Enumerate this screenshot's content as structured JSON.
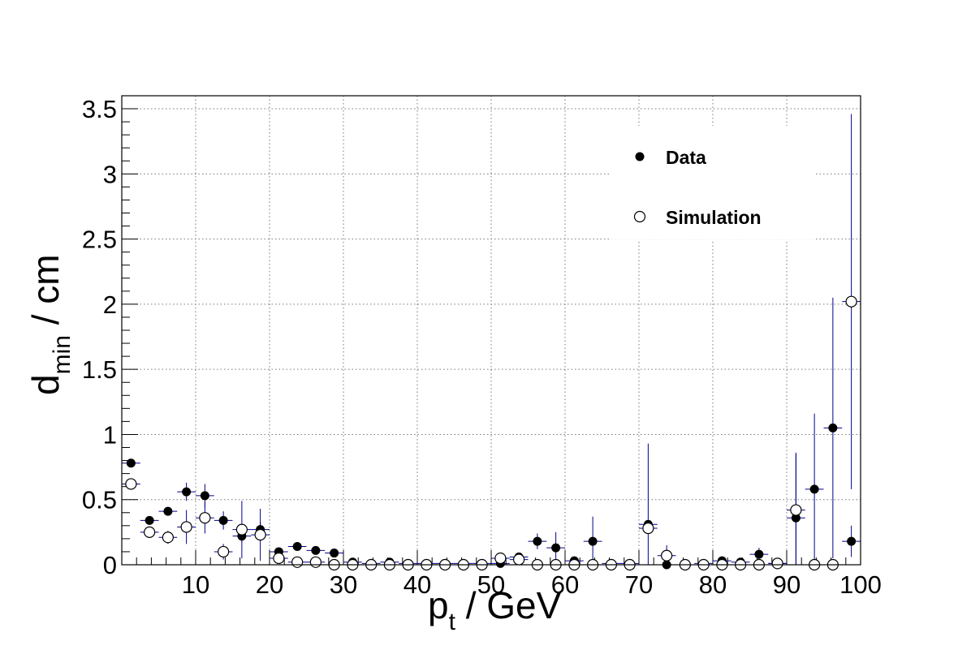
{
  "chart_data": {
    "type": "scatter",
    "xlabel": {
      "main": "p",
      "sub": "t",
      "rest": " / GeV"
    },
    "ylabel": {
      "main": "d",
      "sub": "min",
      "rest": " / cm"
    },
    "xlim": [
      0,
      100
    ],
    "ylim": [
      0,
      3.6
    ],
    "grid": true,
    "x_ticks": [
      {
        "value": 10,
        "label": "10"
      },
      {
        "value": 20,
        "label": "20"
      },
      {
        "value": 30,
        "label": "30"
      },
      {
        "value": 40,
        "label": "40"
      },
      {
        "value": 50,
        "label": "50"
      },
      {
        "value": 60,
        "label": "60"
      },
      {
        "value": 70,
        "label": "70"
      },
      {
        "value": 80,
        "label": "80"
      },
      {
        "value": 90,
        "label": "90"
      },
      {
        "value": 100,
        "label": "100"
      }
    ],
    "y_ticks": [
      {
        "value": 0,
        "label": "0"
      },
      {
        "value": 0.5,
        "label": "0.5"
      },
      {
        "value": 1,
        "label": "1"
      },
      {
        "value": 1.5,
        "label": "1.5"
      },
      {
        "value": 2,
        "label": "2"
      },
      {
        "value": 2.5,
        "label": "2.5"
      },
      {
        "value": 3,
        "label": "3"
      },
      {
        "value": 3.5,
        "label": "3.5"
      }
    ],
    "x_bin_half_width": 1.25,
    "legend_placement": "top-right",
    "series": [
      {
        "name": "Data",
        "marker": "filled-circle",
        "color": "#000000",
        "error_color": "#00008b",
        "points": [
          [
            1.25,
            0.78,
            0.0
          ],
          [
            3.75,
            0.34,
            0.0
          ],
          [
            6.25,
            0.41,
            0.0
          ],
          [
            8.75,
            0.56,
            0.07
          ],
          [
            11.25,
            0.53,
            0.09
          ],
          [
            13.75,
            0.34,
            0.07
          ],
          [
            16.25,
            0.22,
            0.05
          ],
          [
            18.75,
            0.27,
            0.06
          ],
          [
            21.25,
            0.1,
            0.0
          ],
          [
            23.75,
            0.14,
            0.0
          ],
          [
            26.25,
            0.11,
            0.0
          ],
          [
            28.75,
            0.09,
            0.0
          ],
          [
            31.25,
            0.02,
            0.0
          ],
          [
            33.75,
            0.01,
            0.0
          ],
          [
            36.25,
            0.02,
            0.0
          ],
          [
            38.75,
            0.01,
            0.0
          ],
          [
            41.25,
            0.01,
            0.0
          ],
          [
            43.75,
            0.01,
            0.0
          ],
          [
            46.25,
            0.01,
            0.0
          ],
          [
            48.75,
            0.01,
            0.0
          ],
          [
            51.25,
            0.01,
            0.0
          ],
          [
            53.75,
            0.06,
            0.0
          ],
          [
            56.25,
            0.18,
            0.06
          ],
          [
            58.75,
            0.13,
            0.12
          ],
          [
            61.25,
            0.03,
            0.0
          ],
          [
            63.75,
            0.18,
            0.19
          ],
          [
            66.25,
            0.01,
            0.0
          ],
          [
            68.75,
            0.01,
            0.0
          ],
          [
            71.25,
            0.31,
            0.0
          ],
          [
            73.75,
            0.0,
            0.0
          ],
          [
            76.25,
            0.0,
            0.0
          ],
          [
            78.75,
            0.01,
            0.0
          ],
          [
            81.25,
            0.03,
            0.0
          ],
          [
            83.75,
            0.02,
            0.0
          ],
          [
            86.25,
            0.08,
            0.05
          ],
          [
            88.75,
            0.01,
            0.0
          ],
          [
            91.25,
            0.36,
            0.5
          ],
          [
            93.75,
            0.58,
            0.58
          ],
          [
            96.25,
            1.05,
            1.0
          ],
          [
            98.75,
            0.18,
            0.12
          ]
        ]
      },
      {
        "name": "Simulation",
        "marker": "open-circle",
        "color": "#000000",
        "error_color": "#00008b",
        "points": [
          [
            1.25,
            0.62,
            0.0
          ],
          [
            3.75,
            0.25,
            0.0
          ],
          [
            6.25,
            0.21,
            0.05
          ],
          [
            8.75,
            0.29,
            0.13
          ],
          [
            11.25,
            0.36,
            0.12
          ],
          [
            13.75,
            0.1,
            0.06
          ],
          [
            16.25,
            0.27,
            0.22
          ],
          [
            18.75,
            0.23,
            0.2
          ],
          [
            21.25,
            0.05,
            0.0
          ],
          [
            23.75,
            0.02,
            0.0
          ],
          [
            26.25,
            0.02,
            0.0
          ],
          [
            28.75,
            0.0,
            0.0
          ],
          [
            31.25,
            0.0,
            0.0
          ],
          [
            33.75,
            0.0,
            0.0
          ],
          [
            36.25,
            0.0,
            0.0
          ],
          [
            38.75,
            0.0,
            0.0
          ],
          [
            41.25,
            0.0,
            0.0
          ],
          [
            43.75,
            0.0,
            0.0
          ],
          [
            46.25,
            0.0,
            0.0
          ],
          [
            48.75,
            0.0,
            0.0
          ],
          [
            51.25,
            0.05,
            0.0
          ],
          [
            53.75,
            0.04,
            0.0
          ],
          [
            56.25,
            0.0,
            0.0
          ],
          [
            58.75,
            0.0,
            0.0
          ],
          [
            61.25,
            0.0,
            0.0
          ],
          [
            63.75,
            0.0,
            0.0
          ],
          [
            66.25,
            0.0,
            0.0
          ],
          [
            68.75,
            0.0,
            0.0
          ],
          [
            71.25,
            0.28,
            0.65
          ],
          [
            73.75,
            0.07,
            0.08
          ],
          [
            76.25,
            0.0,
            0.0
          ],
          [
            78.75,
            0.0,
            0.0
          ],
          [
            81.25,
            0.0,
            0.0
          ],
          [
            83.75,
            0.0,
            0.0
          ],
          [
            86.25,
            0.0,
            0.0
          ],
          [
            88.75,
            0.01,
            0.0
          ],
          [
            91.25,
            0.42,
            0.43
          ],
          [
            93.75,
            0.0,
            0.0
          ],
          [
            96.25,
            0.0,
            0.0
          ],
          [
            98.75,
            2.02,
            1.44
          ]
        ]
      }
    ]
  }
}
